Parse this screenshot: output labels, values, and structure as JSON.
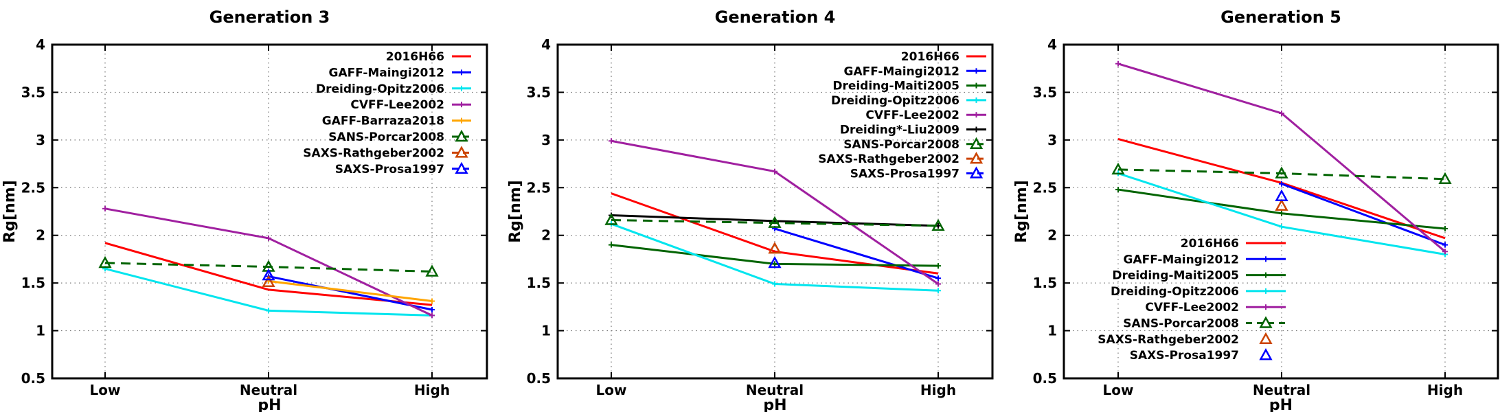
{
  "chart_data": [
    {
      "type": "line",
      "title": "Generation 3",
      "xlabel": "pH",
      "ylabel": "Rg[nm]",
      "categories": [
        "Low",
        "Neutral",
        "High"
      ],
      "ylim": [
        0.5,
        4
      ],
      "yticks": [
        "0.5",
        "1",
        "1.5",
        "2",
        "2.5",
        "3",
        "3.5",
        "4"
      ],
      "grid": true,
      "legend_position": "top-right",
      "series": [
        {
          "name": "2016H66",
          "kind": "line",
          "color": "#ff0000",
          "marker": "none",
          "values": [
            1.92,
            1.43,
            1.27
          ]
        },
        {
          "name": "GAFF-Maingi2012",
          "kind": "line",
          "color": "#0000ff",
          "marker": "plus",
          "values": [
            null,
            1.57,
            1.22
          ]
        },
        {
          "name": "Dreiding-Opitz2006",
          "kind": "line",
          "color": "#00e5ee",
          "marker": "plus",
          "values": [
            1.65,
            1.21,
            1.16
          ]
        },
        {
          "name": "CVFF-Lee2002",
          "kind": "line",
          "color": "#a020a0",
          "marker": "plus",
          "values": [
            2.28,
            1.97,
            1.16
          ]
        },
        {
          "name": "GAFF-Barraza2018",
          "kind": "line",
          "color": "#ffa500",
          "marker": "plus",
          "values": [
            null,
            1.52,
            1.31
          ]
        },
        {
          "name": "SANS-Porcar2008",
          "kind": "dashed",
          "color": "#006400",
          "marker": "triangle",
          "values": [
            1.71,
            1.67,
            1.62
          ]
        },
        {
          "name": "SAXS-Rathgeber2002",
          "kind": "dashed",
          "color": "#cc4400",
          "marker": "triangle",
          "values": [
            null,
            1.51,
            null
          ]
        },
        {
          "name": "SAXS-Prosa1997",
          "kind": "dashed",
          "color": "#0000ff",
          "marker": "triangle",
          "values": [
            null,
            1.58,
            null
          ]
        }
      ]
    },
    {
      "type": "line",
      "title": "Generation 4",
      "xlabel": "pH",
      "ylabel": "Rg[nm]",
      "categories": [
        "Low",
        "Neutral",
        "High"
      ],
      "ylim": [
        0.5,
        4
      ],
      "yticks": [
        "0.5",
        "1",
        "1.5",
        "2",
        "2.5",
        "3",
        "3.5",
        "4"
      ],
      "grid": true,
      "legend_position": "top-right",
      "series": [
        {
          "name": "2016H66",
          "kind": "line",
          "color": "#ff0000",
          "marker": "none",
          "values": [
            2.44,
            1.83,
            1.6
          ]
        },
        {
          "name": "GAFF-Maingi2012",
          "kind": "line",
          "color": "#0000ff",
          "marker": "plus",
          "values": [
            null,
            2.07,
            1.55
          ]
        },
        {
          "name": "Dreiding-Maiti2005",
          "kind": "line",
          "color": "#006400",
          "marker": "plus",
          "values": [
            1.9,
            1.7,
            1.68
          ]
        },
        {
          "name": "Dreiding-Opitz2006",
          "kind": "line",
          "color": "#00e5ee",
          "marker": "plus",
          "values": [
            2.12,
            1.49,
            1.42
          ]
        },
        {
          "name": "CVFF-Lee2002",
          "kind": "line",
          "color": "#a020a0",
          "marker": "plus",
          "values": [
            2.99,
            2.67,
            1.49
          ]
        },
        {
          "name": "Dreiding*-Liu2009",
          "kind": "line",
          "color": "#000000",
          "marker": "plus",
          "values": [
            2.21,
            2.15,
            2.1
          ]
        },
        {
          "name": "SANS-Porcar2008",
          "kind": "dashed",
          "color": "#006400",
          "marker": "triangle",
          "values": [
            2.16,
            2.13,
            2.1
          ]
        },
        {
          "name": "SAXS-Rathgeber2002",
          "kind": "dashed",
          "color": "#cc4400",
          "marker": "triangle",
          "values": [
            null,
            1.86,
            null
          ]
        },
        {
          "name": "SAXS-Prosa1997",
          "kind": "dashed",
          "color": "#0000ff",
          "marker": "triangle",
          "values": [
            null,
            1.71,
            null
          ]
        }
      ]
    },
    {
      "type": "line",
      "title": "Generation 5",
      "xlabel": "pH",
      "ylabel": "Rg[nm]",
      "categories": [
        "Low",
        "Neutral",
        "High"
      ],
      "ylim": [
        0.5,
        4
      ],
      "yticks": [
        "0.5",
        "1",
        "1.5",
        "2",
        "2.5",
        "3",
        "3.5",
        "4"
      ],
      "grid": true,
      "legend_position": "bottom-left",
      "series": [
        {
          "name": "2016H66",
          "kind": "line",
          "color": "#ff0000",
          "marker": "none",
          "values": [
            3.01,
            2.55,
            1.97
          ]
        },
        {
          "name": "GAFF-Maingi2012",
          "kind": "line",
          "color": "#0000ff",
          "marker": "plus",
          "values": [
            null,
            2.54,
            1.9
          ]
        },
        {
          "name": "Dreiding-Maiti2005",
          "kind": "line",
          "color": "#006400",
          "marker": "plus",
          "values": [
            2.48,
            2.23,
            2.07
          ]
        },
        {
          "name": "Dreiding-Opitz2006",
          "kind": "line",
          "color": "#00e5ee",
          "marker": "plus",
          "values": [
            2.65,
            2.09,
            1.8
          ]
        },
        {
          "name": "CVFF-Lee2002",
          "kind": "line",
          "color": "#a020a0",
          "marker": "plus",
          "values": [
            3.8,
            3.28,
            1.83
          ]
        },
        {
          "name": "SANS-Porcar2008",
          "kind": "dashed",
          "color": "#006400",
          "marker": "triangle",
          "values": [
            2.69,
            2.65,
            2.59
          ]
        },
        {
          "name": "SAXS-Rathgeber2002",
          "kind": "point",
          "color": "#cc4400",
          "marker": "triangle",
          "values": [
            null,
            2.31,
            null
          ]
        },
        {
          "name": "SAXS-Prosa1997",
          "kind": "point",
          "color": "#0000ff",
          "marker": "triangle",
          "values": [
            null,
            2.41,
            null
          ]
        }
      ]
    }
  ]
}
